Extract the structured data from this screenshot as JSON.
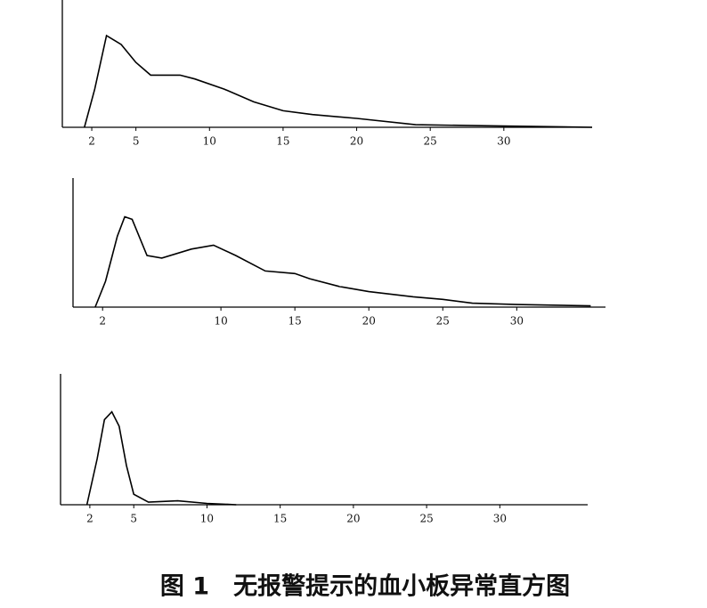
{
  "chart_data": [
    {
      "type": "line",
      "color": "#000000",
      "xlim": [
        0,
        36
      ],
      "ylim": [
        0,
        100
      ],
      "xticks": [
        2,
        5,
        10,
        15,
        20,
        25,
        30
      ],
      "x": [
        1.5,
        2.2,
        3,
        4,
        5,
        6,
        8,
        9,
        11,
        13,
        15,
        17,
        20,
        24,
        30,
        36
      ],
      "values": [
        0,
        30,
        72,
        65,
        51,
        41,
        41,
        38,
        30,
        20,
        13,
        10,
        7,
        2,
        1,
        0
      ]
    },
    {
      "type": "line",
      "color": "#000000",
      "xlim": [
        0,
        36
      ],
      "ylim": [
        0,
        100
      ],
      "xticks": [
        2,
        10,
        15,
        20,
        25,
        30
      ],
      "x": [
        1.5,
        2.2,
        3,
        3.5,
        4,
        5,
        6,
        8,
        9.5,
        11,
        13,
        15,
        16,
        18,
        20,
        23,
        25,
        27,
        30,
        35
      ],
      "values": [
        0,
        20,
        55,
        70,
        68,
        40,
        38,
        45,
        48,
        40,
        28,
        26,
        22,
        16,
        12,
        8,
        6,
        3,
        2,
        1
      ]
    },
    {
      "type": "line",
      "color": "#000000",
      "xlim": [
        0,
        36
      ],
      "ylim": [
        0,
        100
      ],
      "xticks": [
        2,
        5,
        10,
        15,
        20,
        25,
        30
      ],
      "x": [
        1.8,
        2.5,
        3,
        3.5,
        4,
        4.5,
        5,
        6,
        8,
        10,
        12
      ],
      "values": [
        0,
        35,
        65,
        71,
        60,
        30,
        8,
        2,
        3,
        1,
        0
      ]
    }
  ],
  "caption": "图 1　无报警提示的血小板异常直方图"
}
